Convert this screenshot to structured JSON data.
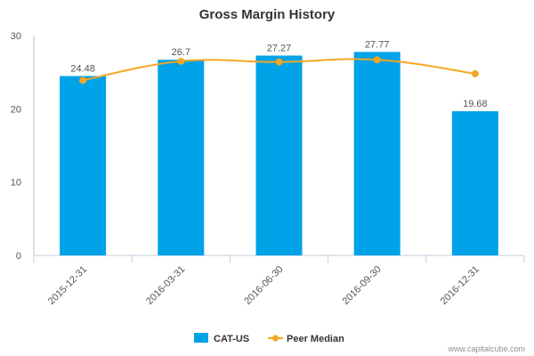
{
  "chart_data": {
    "type": "bar",
    "title": "Gross Margin History",
    "categories": [
      "2015-12-31",
      "2016-03-31",
      "2016-06-30",
      "2016-09-30",
      "2016-12-31"
    ],
    "series": [
      {
        "name": "CAT-US",
        "type": "bar",
        "values": [
          24.48,
          26.7,
          27.27,
          27.77,
          19.68
        ],
        "data_labels": [
          "24.48",
          "26.7",
          "27.27",
          "27.77",
          "19.68"
        ],
        "color": "#00a2e8"
      },
      {
        "name": "Peer Median",
        "type": "line",
        "values": [
          23.9,
          26.5,
          26.4,
          26.7,
          24.8
        ],
        "color": "#f5a623"
      }
    ],
    "yticks": [
      0,
      10,
      20,
      30
    ],
    "ylim": [
      0,
      30
    ],
    "grid": false,
    "legend": "bottom-center"
  },
  "credit": "www.capitalcube.com"
}
